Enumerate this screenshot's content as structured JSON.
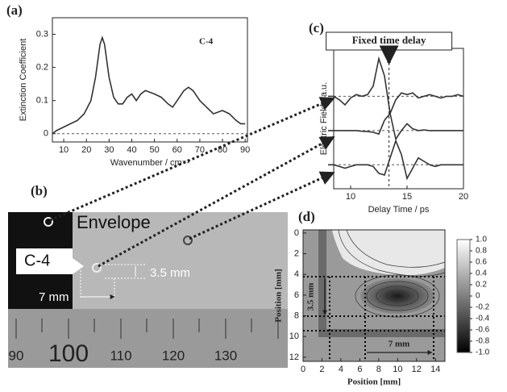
{
  "panels": [
    "(a)",
    "(b)",
    "(c)",
    "(d)"
  ],
  "photo": {
    "label": "Envelope",
    "sample": "C-4",
    "height": "3.5 mm",
    "width": "7 mm",
    "ruler": [
      "90",
      "100",
      "110",
      "120",
      "130"
    ]
  },
  "chart_data": [
    {
      "type": "line",
      "annotation": "C-4",
      "x_label": "Wavenumber / cm⁻¹",
      "y_label": "Extinction Coefficient",
      "x": [
        5,
        7,
        10,
        13,
        16,
        19,
        22,
        24,
        26,
        27,
        28,
        30,
        32,
        34,
        36,
        38,
        40,
        42,
        44,
        46,
        48,
        50,
        53,
        56,
        58,
        60,
        63,
        65,
        67,
        70,
        73,
        76,
        80,
        83,
        86,
        88,
        90
      ],
      "series": [
        {
          "color": "#333333",
          "values": [
            0.0,
            0.01,
            0.02,
            0.03,
            0.04,
            0.06,
            0.1,
            0.17,
            0.27,
            0.29,
            0.27,
            0.17,
            0.11,
            0.09,
            0.09,
            0.11,
            0.12,
            0.1,
            0.12,
            0.13,
            0.125,
            0.12,
            0.11,
            0.09,
            0.08,
            0.1,
            0.13,
            0.14,
            0.13,
            0.1,
            0.08,
            0.06,
            0.07,
            0.06,
            0.04,
            0.03,
            0.03
          ]
        }
      ],
      "xlim": [
        5,
        91
      ],
      "ylim": [
        -0.025,
        0.35
      ],
      "xticks": [
        10,
        20,
        30,
        40,
        50,
        60,
        70,
        80,
        90
      ],
      "yticks": [
        0,
        0.1,
        0.2,
        0.3
      ],
      "baselines": [
        0
      ]
    },
    {
      "type": "line",
      "annotation": "Fixed time delay",
      "x_label": "Delay Time / ps",
      "y_label": "Electric Field / a.u.",
      "x": [
        8,
        8.5,
        9,
        9.5,
        10,
        10.5,
        11,
        11.5,
        12,
        12.5,
        13,
        13.5,
        14,
        14.5,
        15,
        15.5,
        16,
        16.5,
        17,
        17.5,
        18,
        18.5,
        19,
        19.5,
        20
      ],
      "series": [
        {
          "color": "#333333",
          "values": [
            2,
            2,
            1.9,
            1.75,
            1.95,
            2.05,
            2,
            2.05,
            2.3,
            3.1,
            2.6,
            1.5,
            1.9,
            2.1,
            2.05,
            2.1,
            1.95,
            2.0,
            2.05,
            2.0,
            1.95,
            2.0,
            2.0,
            2.05,
            2.0
          ]
        },
        {
          "color": "#333333",
          "values": [
            1,
            1,
            1,
            1,
            1,
            1,
            0.98,
            0.97,
            0.95,
            0.9,
            1.3,
            1.5,
            0.75,
            1.0,
            1.2,
            1.05,
            1.0,
            1.02,
            1.0,
            1.0,
            1.0,
            1.0,
            1.0,
            1.0,
            1.0
          ]
        },
        {
          "color": "#333333",
          "values": [
            0,
            0,
            -0.05,
            -0.1,
            -0.05,
            0,
            0,
            0,
            -0.05,
            -0.25,
            -0.3,
            0.2,
            0.7,
            0.3,
            -0.4,
            -0.1,
            0.2,
            0.1,
            0,
            -0.05,
            0,
            0,
            0,
            0,
            0
          ]
        }
      ],
      "xlim": [
        8.5,
        20
      ],
      "ylim": [
        -0.7,
        3.4
      ],
      "xticks": [
        10,
        15,
        20
      ],
      "baselines": [
        2,
        1,
        0
      ],
      "delay_marker": 13.4
    },
    {
      "type": "contour",
      "x_label": "Position  [mm]",
      "y_label": "Position  [mm]",
      "xlim": [
        0,
        15
      ],
      "ylim": [
        12.4,
        -0.3
      ],
      "xticks": [
        0,
        2,
        4,
        6,
        8,
        10,
        12,
        14
      ],
      "yticks": [
        0,
        2,
        4,
        6,
        8,
        10,
        12
      ],
      "clim": [
        -1,
        1
      ],
      "cticks": [
        {
          "value": 1.0,
          "label": "1.0"
        },
        0.8,
        0.6,
        0.4,
        0.2,
        0,
        -0.2,
        -0.4,
        -0.6,
        -0.8,
        {
          "value": -1.0,
          "label": "-1.0"
        }
      ],
      "annotations": [
        "3.5 mm",
        "7 mm"
      ]
    }
  ]
}
